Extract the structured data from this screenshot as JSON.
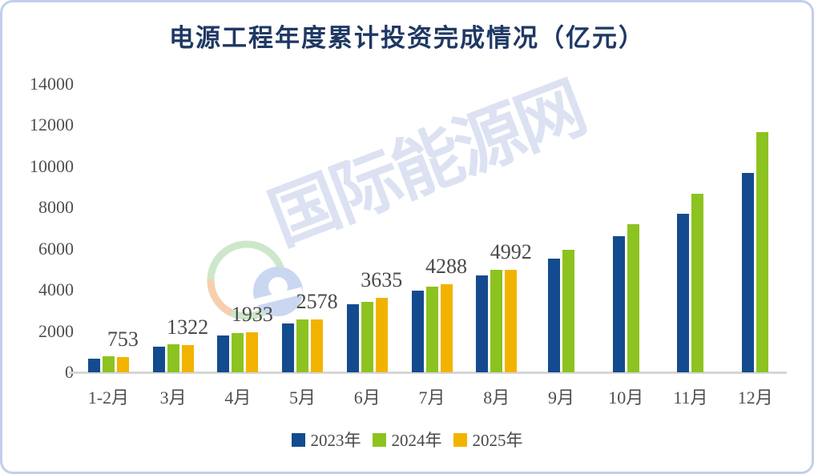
{
  "title": "电源工程年度累计投资完成情况（亿元）",
  "watermark": {
    "text": "国际能源网",
    "logo": "energy-globe-logo"
  },
  "colors": {
    "series_2023": "#134b8e",
    "series_2024": "#8dc320",
    "series_2025": "#f2b300",
    "title_text": "#1f3864",
    "axis_text": "#4f4f4f",
    "axis_line": "#d6d6d6",
    "frame_border": "#c2cfea",
    "watermark": "#dbe1f2"
  },
  "chart_data": {
    "type": "bar",
    "title": "电源工程年度累计投资完成情况（亿元）",
    "categories": [
      "1-2月",
      "3月",
      "4月",
      "5月",
      "6月",
      "7月",
      "8月",
      "9月",
      "10月",
      "11月",
      "12月"
    ],
    "series": [
      {
        "name": "2023年",
        "color": "#134b8e",
        "labeled": false,
        "values": [
          676,
          1264,
          1802,
          2389,
          3319,
          3976,
          4704,
          5538,
          6621,
          7713,
          9675
        ]
      },
      {
        "name": "2024年",
        "color": "#8dc320",
        "labeled": false,
        "values": [
          767,
          1363,
          1912,
          2578,
          3441,
          4158,
          4976,
          5959,
          7181,
          8665,
          11687
        ]
      },
      {
        "name": "2025年",
        "color": "#f2b300",
        "labeled": true,
        "values": [
          753,
          1322,
          1933,
          2578,
          3635,
          4288,
          4992,
          null,
          null,
          null,
          null
        ]
      }
    ],
    "data_labels": [
      753,
      1322,
      1933,
      2578,
      3635,
      4288,
      4992
    ],
    "xlabel": "",
    "ylabel": "",
    "ylim": [
      0,
      14000
    ],
    "ytick_step": 2000,
    "yticks": [
      "0",
      "2000",
      "4000",
      "6000",
      "8000",
      "10000",
      "12000",
      "14000"
    ],
    "grid": false,
    "legend_position": "bottom"
  }
}
